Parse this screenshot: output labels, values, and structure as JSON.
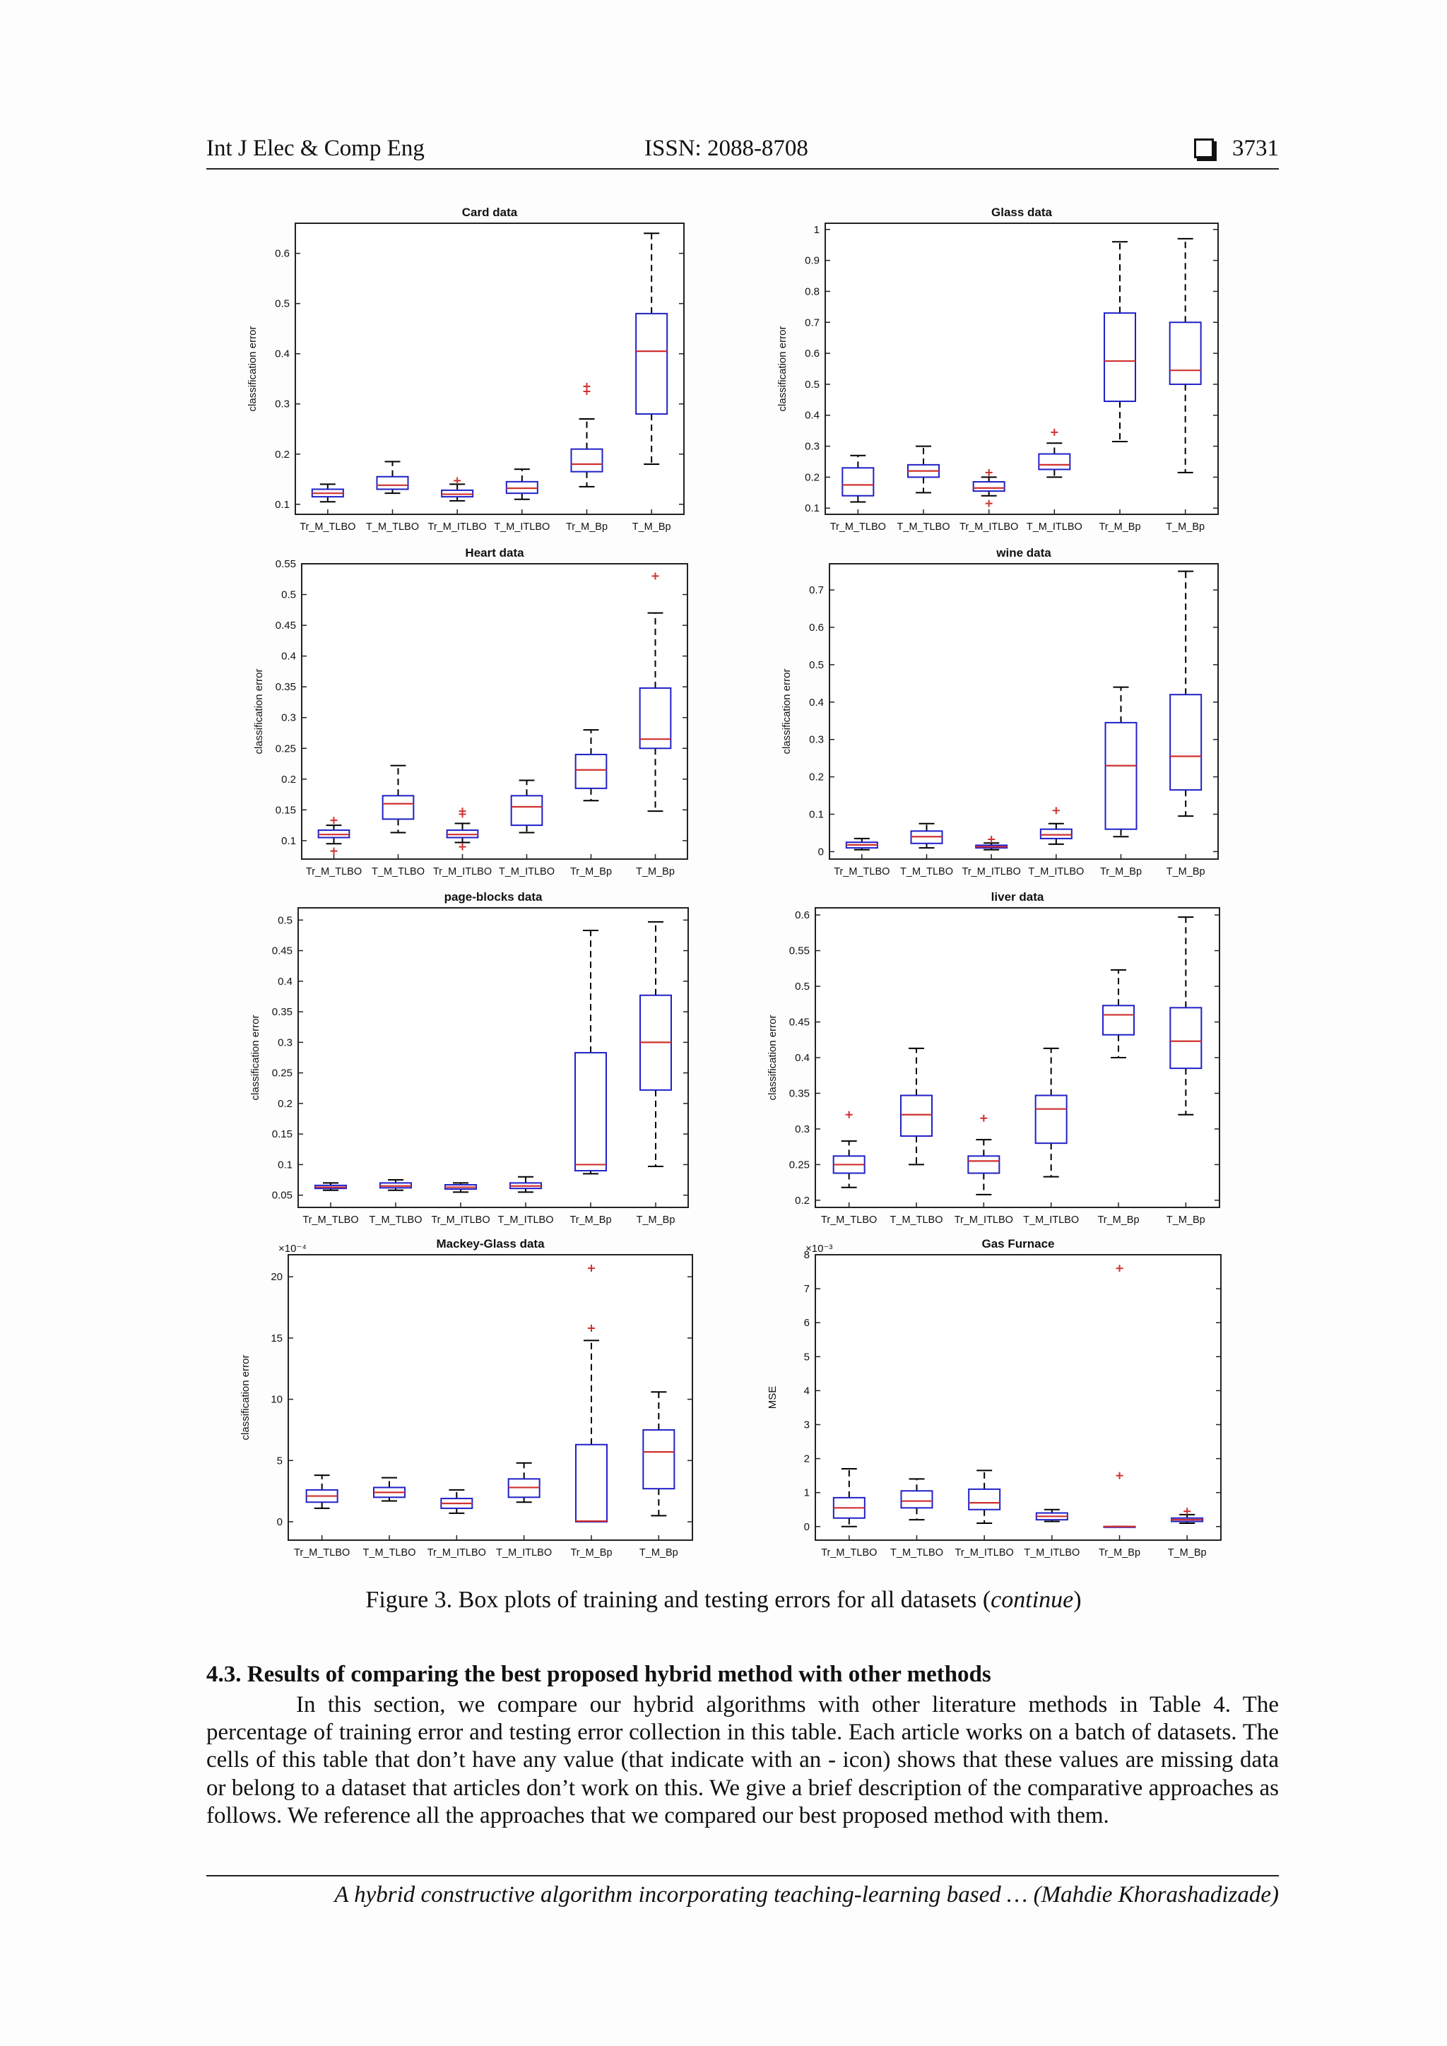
{
  "header": {
    "journal": "Int J Elec & Comp Eng",
    "issn": "ISSN: 2088-8708",
    "page_number": "3731"
  },
  "colors": {
    "box": "#2020c8",
    "median": "#d03030",
    "outlier": "#d03030",
    "whisker": "#000000"
  },
  "chart_data": [
    {
      "type": "box",
      "title": "Card data",
      "ylabel": "classification error",
      "ylim": [
        0.08,
        0.66
      ],
      "yticks": [
        0.1,
        0.2,
        0.3,
        0.4,
        0.5,
        0.6
      ],
      "ytick_labels": [
        "0.1",
        "0.2",
        "0.3",
        "0.4",
        "0.5",
        "0.6"
      ],
      "categories": [
        "Tr_M_TLBO",
        "T_M_TLBO",
        "Tr_M_ITLBO",
        "T_M_ITLBO",
        "Tr_M_Bp",
        "T_M_Bp"
      ],
      "boxes": [
        {
          "min": 0.105,
          "q1": 0.115,
          "median": 0.122,
          "q3": 0.13,
          "max": 0.14,
          "outliers": []
        },
        {
          "min": 0.122,
          "q1": 0.13,
          "median": 0.138,
          "q3": 0.155,
          "max": 0.185,
          "outliers": []
        },
        {
          "min": 0.107,
          "q1": 0.115,
          "median": 0.12,
          "q3": 0.128,
          "max": 0.14,
          "outliers": [
            0.147
          ]
        },
        {
          "min": 0.11,
          "q1": 0.122,
          "median": 0.132,
          "q3": 0.145,
          "max": 0.17,
          "outliers": []
        },
        {
          "min": 0.135,
          "q1": 0.165,
          "median": 0.18,
          "q3": 0.21,
          "max": 0.27,
          "outliers": [
            0.325,
            0.335
          ]
        },
        {
          "min": 0.18,
          "q1": 0.28,
          "median": 0.405,
          "q3": 0.48,
          "max": 0.64,
          "outliers": []
        }
      ]
    },
    {
      "type": "box",
      "title": "Glass data",
      "ylabel": "classification error",
      "ylim": [
        0.08,
        1.02
      ],
      "yticks": [
        0.1,
        0.2,
        0.3,
        0.4,
        0.5,
        0.6,
        0.7,
        0.8,
        0.9,
        1
      ],
      "ytick_labels": [
        "0.1",
        "0.2",
        "0.3",
        "0.4",
        "0.5",
        "0.6",
        "0.7",
        "0.8",
        "0.9",
        "1"
      ],
      "categories": [
        "Tr_M_TLBO",
        "T_M_TLBO",
        "Tr_M_ITLBO",
        "T_M_ITLBO",
        "Tr_M_Bp",
        "T_M_Bp"
      ],
      "boxes": [
        {
          "min": 0.12,
          "q1": 0.14,
          "median": 0.175,
          "q3": 0.23,
          "max": 0.27,
          "outliers": []
        },
        {
          "min": 0.15,
          "q1": 0.2,
          "median": 0.22,
          "q3": 0.24,
          "max": 0.3,
          "outliers": []
        },
        {
          "min": 0.14,
          "q1": 0.155,
          "median": 0.165,
          "q3": 0.185,
          "max": 0.2,
          "outliers": [
            0.115,
            0.215
          ]
        },
        {
          "min": 0.2,
          "q1": 0.225,
          "median": 0.24,
          "q3": 0.275,
          "max": 0.31,
          "outliers": [
            0.345
          ]
        },
        {
          "min": 0.315,
          "q1": 0.445,
          "median": 0.575,
          "q3": 0.73,
          "max": 0.96,
          "outliers": []
        },
        {
          "min": 0.215,
          "q1": 0.5,
          "median": 0.545,
          "q3": 0.7,
          "max": 0.97,
          "outliers": []
        }
      ]
    },
    {
      "type": "box",
      "title": "Heart data",
      "ylabel": "classification error",
      "ylim": [
        0.07,
        0.55
      ],
      "yticks": [
        0.1,
        0.15,
        0.2,
        0.25,
        0.3,
        0.35,
        0.4,
        0.45,
        0.5,
        0.55
      ],
      "ytick_labels": [
        "0.1",
        "0.15",
        "0.2",
        "0.25",
        "0.3",
        "0.35",
        "0.4",
        "0.45",
        "0.5",
        "0.55"
      ],
      "categories": [
        "Tr_M_TLBO",
        "T_M_TLBO",
        "Tr_M_ITLBO",
        "T_M_ITLBO",
        "Tr_M_Bp",
        "T_M_Bp"
      ],
      "boxes": [
        {
          "min": 0.095,
          "q1": 0.105,
          "median": 0.11,
          "q3": 0.117,
          "max": 0.125,
          "outliers": [
            0.083,
            0.133
          ]
        },
        {
          "min": 0.113,
          "q1": 0.135,
          "median": 0.16,
          "q3": 0.173,
          "max": 0.222,
          "outliers": []
        },
        {
          "min": 0.097,
          "q1": 0.105,
          "median": 0.11,
          "q3": 0.117,
          "max": 0.128,
          "outliers": [
            0.09,
            0.143,
            0.148
          ]
        },
        {
          "min": 0.113,
          "q1": 0.125,
          "median": 0.155,
          "q3": 0.173,
          "max": 0.198,
          "outliers": []
        },
        {
          "min": 0.165,
          "q1": 0.185,
          "median": 0.215,
          "q3": 0.24,
          "max": 0.28,
          "outliers": []
        },
        {
          "min": 0.148,
          "q1": 0.25,
          "median": 0.265,
          "q3": 0.348,
          "max": 0.47,
          "outliers": [
            0.53
          ]
        }
      ]
    },
    {
      "type": "box",
      "title": "wine data",
      "ylabel": "classification error",
      "ylim": [
        -0.02,
        0.77
      ],
      "yticks": [
        0,
        0.1,
        0.2,
        0.3,
        0.4,
        0.5,
        0.6,
        0.7
      ],
      "ytick_labels": [
        "0",
        "0.1",
        "0.2",
        "0.3",
        "0.4",
        "0.5",
        "0.6",
        "0.7"
      ],
      "categories": [
        "Tr_M_TLBO",
        "T_M_TLBO",
        "Tr_M_ITLBO",
        "T_M_ITLBO",
        "Tr_M_Bp",
        "T_M_Bp"
      ],
      "boxes": [
        {
          "min": 0.005,
          "q1": 0.01,
          "median": 0.018,
          "q3": 0.025,
          "max": 0.035,
          "outliers": []
        },
        {
          "min": 0.01,
          "q1": 0.022,
          "median": 0.04,
          "q3": 0.055,
          "max": 0.075,
          "outliers": []
        },
        {
          "min": 0.005,
          "q1": 0.01,
          "median": 0.013,
          "q3": 0.017,
          "max": 0.023,
          "outliers": [
            0.033
          ]
        },
        {
          "min": 0.02,
          "q1": 0.035,
          "median": 0.045,
          "q3": 0.06,
          "max": 0.075,
          "outliers": [
            0.11
          ]
        },
        {
          "min": 0.04,
          "q1": 0.06,
          "median": 0.23,
          "q3": 0.345,
          "max": 0.44,
          "outliers": []
        },
        {
          "min": 0.095,
          "q1": 0.165,
          "median": 0.255,
          "q3": 0.42,
          "max": 0.75,
          "outliers": []
        }
      ]
    },
    {
      "type": "box",
      "title": "page-blocks data",
      "ylabel": "classification error",
      "ylim": [
        0.03,
        0.52
      ],
      "yticks": [
        0.05,
        0.1,
        0.15,
        0.2,
        0.25,
        0.3,
        0.35,
        0.4,
        0.45,
        0.5
      ],
      "ytick_labels": [
        "0.05",
        "0.1",
        "0.15",
        "0.2",
        "0.25",
        "0.3",
        "0.35",
        "0.4",
        "0.45",
        "0.5"
      ],
      "categories": [
        "Tr_M_TLBO",
        "T_M_TLBO",
        "Tr_M_ITLBO",
        "T_M_ITLBO",
        "Tr_M_Bp",
        "T_M_Bp"
      ],
      "boxes": [
        {
          "min": 0.058,
          "q1": 0.061,
          "median": 0.063,
          "q3": 0.066,
          "max": 0.07,
          "outliers": []
        },
        {
          "min": 0.058,
          "q1": 0.062,
          "median": 0.065,
          "q3": 0.07,
          "max": 0.075,
          "outliers": []
        },
        {
          "min": 0.055,
          "q1": 0.06,
          "median": 0.063,
          "q3": 0.067,
          "max": 0.07,
          "outliers": []
        },
        {
          "min": 0.055,
          "q1": 0.061,
          "median": 0.065,
          "q3": 0.07,
          "max": 0.08,
          "outliers": []
        },
        {
          "min": 0.085,
          "q1": 0.09,
          "median": 0.1,
          "q3": 0.283,
          "max": 0.483,
          "outliers": []
        },
        {
          "min": 0.097,
          "q1": 0.222,
          "median": 0.3,
          "q3": 0.377,
          "max": 0.497,
          "outliers": []
        }
      ]
    },
    {
      "type": "box",
      "title": "liver data",
      "ylabel": "classification error",
      "ylim": [
        0.19,
        0.61
      ],
      "yticks": [
        0.2,
        0.25,
        0.3,
        0.35,
        0.4,
        0.45,
        0.5,
        0.55,
        0.6
      ],
      "ytick_labels": [
        "0.2",
        "0.25",
        "0.3",
        "0.35",
        "0.4",
        "0.45",
        "0.5",
        "0.55",
        "0.6"
      ],
      "categories": [
        "Tr_M_TLBO",
        "T_M_TLBO",
        "Tr_M_ITLBO",
        "T_M_ITLBO",
        "Tr_M_Bp",
        "T_M_Bp"
      ],
      "boxes": [
        {
          "min": 0.218,
          "q1": 0.238,
          "median": 0.25,
          "q3": 0.262,
          "max": 0.283,
          "outliers": [
            0.32
          ]
        },
        {
          "min": 0.25,
          "q1": 0.29,
          "median": 0.32,
          "q3": 0.347,
          "max": 0.413,
          "outliers": []
        },
        {
          "min": 0.208,
          "q1": 0.238,
          "median": 0.255,
          "q3": 0.262,
          "max": 0.285,
          "outliers": [
            0.315
          ]
        },
        {
          "min": 0.233,
          "q1": 0.28,
          "median": 0.328,
          "q3": 0.347,
          "max": 0.413,
          "outliers": []
        },
        {
          "min": 0.4,
          "q1": 0.432,
          "median": 0.46,
          "q3": 0.473,
          "max": 0.523,
          "outliers": []
        },
        {
          "min": 0.32,
          "q1": 0.385,
          "median": 0.423,
          "q3": 0.47,
          "max": 0.597,
          "outliers": []
        }
      ]
    },
    {
      "type": "box",
      "title": "Mackey-Glass data",
      "ylabel": "classification error",
      "scale_label": "×10⁻⁴",
      "ylim": [
        -1.5,
        21.8
      ],
      "yticks": [
        0,
        5,
        10,
        15,
        20
      ],
      "ytick_labels": [
        "0",
        "5",
        "10",
        "15",
        "20"
      ],
      "categories": [
        "Tr_M_TLBO",
        "T_M_TLBO",
        "Tr_M_ITLBO",
        "T_M_ITLBO",
        "Tr_M_Bp",
        "T_M_Bp"
      ],
      "boxes": [
        {
          "min": 1.1,
          "q1": 1.6,
          "median": 2.1,
          "q3": 2.6,
          "max": 3.8,
          "outliers": []
        },
        {
          "min": 1.7,
          "q1": 2.0,
          "median": 2.4,
          "q3": 2.8,
          "max": 3.6,
          "outliers": []
        },
        {
          "min": 0.7,
          "q1": 1.1,
          "median": 1.5,
          "q3": 1.9,
          "max": 2.6,
          "outliers": []
        },
        {
          "min": 1.6,
          "q1": 2.0,
          "median": 2.8,
          "q3": 3.5,
          "max": 4.8,
          "outliers": []
        },
        {
          "min": 0.0,
          "q1": 0.0,
          "median": 0.05,
          "q3": 6.3,
          "max": 14.8,
          "outliers": [
            15.8,
            20.7
          ]
        },
        {
          "min": 0.5,
          "q1": 2.7,
          "median": 5.7,
          "q3": 7.5,
          "max": 10.6,
          "outliers": []
        }
      ]
    },
    {
      "type": "box",
      "title": "Gas Furnace",
      "ylabel": "MSE",
      "scale_label": "×10⁻³",
      "ylim": [
        -0.4,
        8.0
      ],
      "yticks": [
        0,
        1,
        2,
        3,
        4,
        5,
        6,
        7,
        8
      ],
      "ytick_labels": [
        "0",
        "1",
        "2",
        "3",
        "4",
        "5",
        "6",
        "7",
        "8"
      ],
      "categories": [
        "Tr_M_TLBO",
        "T_M_TLBO",
        "Tr_M_ITLBO",
        "T_M_ITLBO",
        "Tr_M_Bp",
        "T_M_Bp"
      ],
      "boxes": [
        {
          "min": 0.0,
          "q1": 0.25,
          "median": 0.55,
          "q3": 0.85,
          "max": 1.7,
          "outliers": []
        },
        {
          "min": 0.2,
          "q1": 0.55,
          "median": 0.75,
          "q3": 1.05,
          "max": 1.4,
          "outliers": []
        },
        {
          "min": 0.1,
          "q1": 0.5,
          "median": 0.7,
          "q3": 1.1,
          "max": 1.65,
          "outliers": []
        },
        {
          "min": 0.15,
          "q1": 0.2,
          "median": 0.3,
          "q3": 0.4,
          "max": 0.5,
          "outliers": []
        },
        {
          "min": 0.0,
          "q1": 0.0,
          "median": 0.0,
          "q3": 0.0,
          "max": 0.0,
          "outliers": [
            1.5,
            7.6
          ]
        },
        {
          "min": 0.1,
          "q1": 0.15,
          "median": 0.2,
          "q3": 0.25,
          "max": 0.35,
          "outliers": [
            0.45
          ]
        }
      ]
    }
  ],
  "caption": {
    "prefix": "Figure 3. Box plots of training and testing errors for all datasets (",
    "italic": "continue",
    "suffix": ")"
  },
  "section": {
    "title": "4.3. Results of comparing the best proposed hybrid method with other methods"
  },
  "paragraph": "In this section, we compare our hybrid algorithms with other literature methods in Table 4. The percentage of training error and testing error collection in this table. Each article works on a batch of datasets. The cells of this table that don’t have any value (that indicate with an - icon) shows that these values are missing data or belong to a dataset that articles don’t work on this. We give a brief description of the comparative approaches as follows. We reference all the approaches that we compared our best proposed method with them.",
  "footer": "A hybrid constructive algorithm incorporating teaching-learning based … (Mahdie Khorashadizade)"
}
